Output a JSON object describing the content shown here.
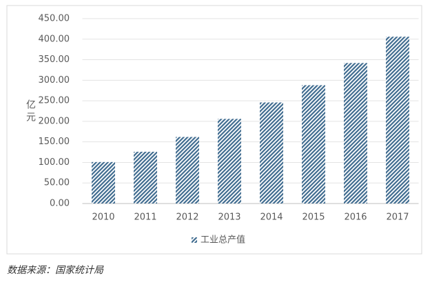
{
  "chart_data": {
    "type": "bar",
    "y_label": "亿元",
    "categories": [
      "2010",
      "2011",
      "2012",
      "2013",
      "2014",
      "2015",
      "2016",
      "2017"
    ],
    "series": [
      {
        "name": "工业总产值",
        "color": "#3f6b8f",
        "values": [
          101,
          126,
          162,
          206,
          246,
          288,
          342,
          406
        ]
      }
    ],
    "ylim": [
      0,
      450
    ],
    "yticks": [
      {
        "value": 0,
        "label": "0.00"
      },
      {
        "value": 50,
        "label": "50.00"
      },
      {
        "value": 100,
        "label": "100.00"
      },
      {
        "value": 150,
        "label": "150.00"
      },
      {
        "value": 200,
        "label": "200.00"
      },
      {
        "value": 250,
        "label": "250.00"
      },
      {
        "value": 300,
        "label": "300.00"
      },
      {
        "value": 350,
        "label": "350.00"
      },
      {
        "value": 400,
        "label": "400.00"
      },
      {
        "value": 450,
        "label": "450.00"
      }
    ],
    "grid": true,
    "legend": "bottom",
    "source": "数据来源：国家统计局"
  }
}
